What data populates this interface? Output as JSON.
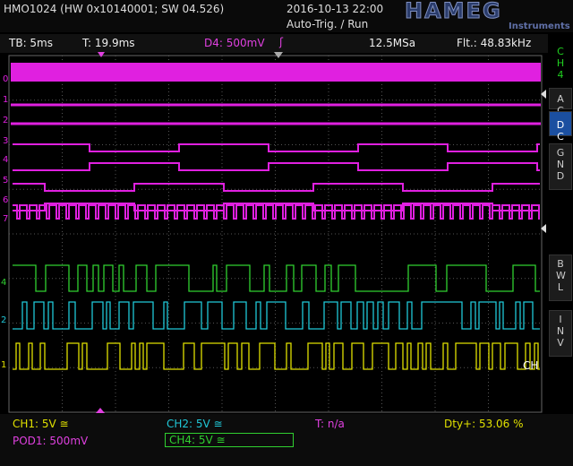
{
  "header": {
    "model": "HMO1024 (HW 0x10140001; SW 04.526)",
    "datetime": "2016-10-13 22:00",
    "status": "Auto-Trig. / Run",
    "logo": "HAMEG",
    "logo_sub": "Instruments"
  },
  "status_bar": {
    "timebase": "TB: 5ms",
    "trigger_time": "T: 19.9ms",
    "trigger_source": "D4: 500mV",
    "slope": "ʃ",
    "sample_rate": "12.5MSa",
    "filter": "Flt.: 48.83kHz"
  },
  "side_menu": {
    "channel": "CH4",
    "buttons": [
      "AC",
      "DC",
      "GND",
      "BWL",
      "INV"
    ]
  },
  "traces": {
    "digital_labels": [
      "0",
      "1",
      "2",
      "3",
      "4",
      "5",
      "6",
      "7"
    ],
    "analog_labels": [
      "4",
      "2",
      "1"
    ],
    "overflow_label": "CH"
  },
  "footer": {
    "ch1": "CH1: 5V ≅",
    "ch2": "CH2: 5V ≅",
    "trigger": "T: n/a",
    "duty": "Dty+: 53.06 %",
    "pod1": "POD1: 500mV",
    "ch4": "CH4: 5V ≅"
  }
}
